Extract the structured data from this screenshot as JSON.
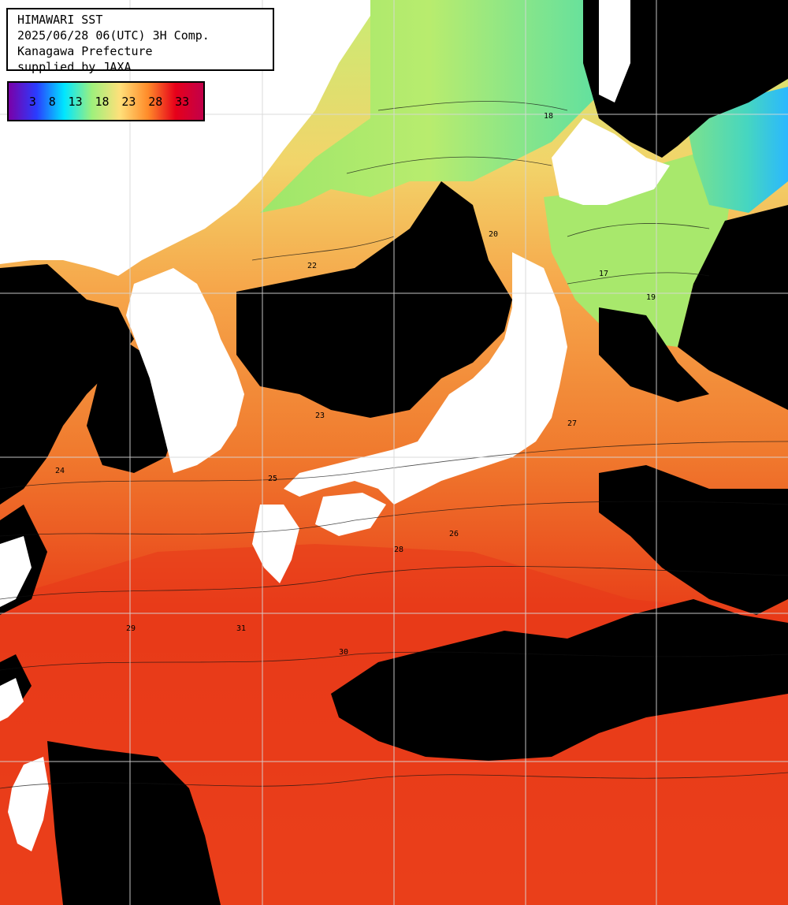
{
  "header": {
    "title": "HIMAWARI SST",
    "datetime": "2025/06/28 06(UTC) 3H Comp.",
    "region": "Kanagawa Prefecture",
    "supplier": "supplied by JAXA"
  },
  "legend": {
    "labels": [
      "3",
      "8",
      "13",
      "18",
      "23",
      "28",
      "33"
    ],
    "colors": [
      "#7a00a8",
      "#2a3cff",
      "#00e6ff",
      "#9ff07c",
      "#ffe07a",
      "#ff8c2a",
      "#e6001a",
      "#c2004a"
    ]
  },
  "palette": {
    "cloud": "#000000",
    "land": "#ffffff",
    "grid": "#cfcfcf",
    "contour": "#111111"
  },
  "contour_labels": [
    "18",
    "19",
    "17",
    "20",
    "22",
    "23",
    "24",
    "25",
    "26",
    "27",
    "28",
    "29",
    "30",
    "31"
  ]
}
